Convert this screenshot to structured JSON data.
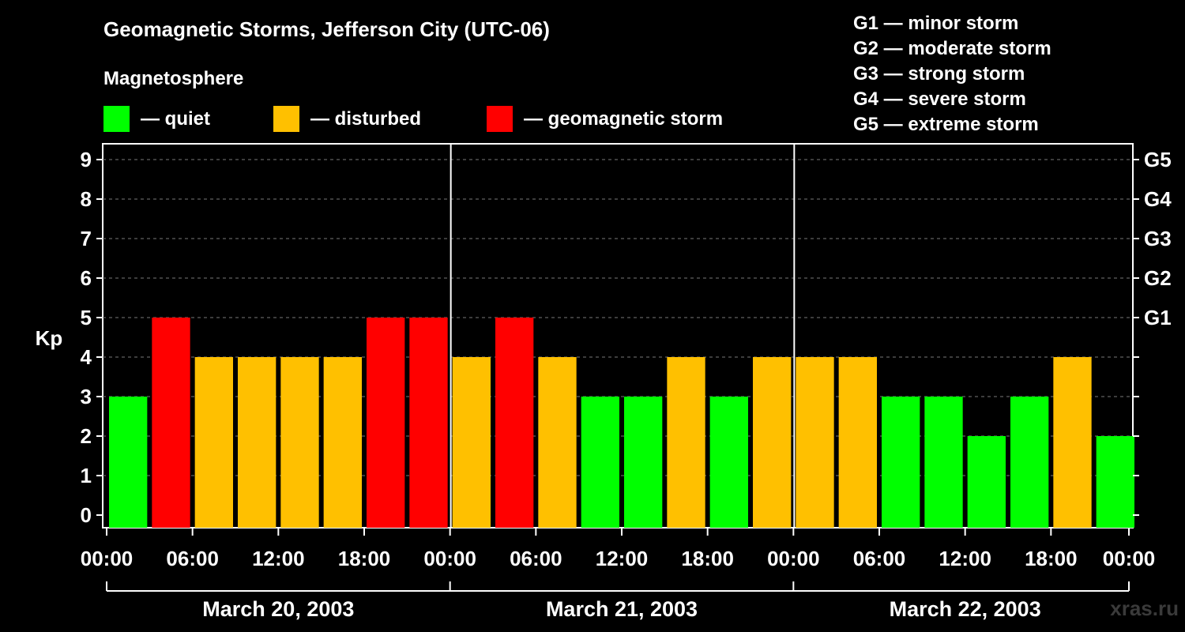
{
  "title": "Geomagnetic Storms, Jefferson City (UTC-06)",
  "subtitle": "Magnetosphere",
  "legend": [
    {
      "label": "— quiet",
      "color": "#00ff00"
    },
    {
      "label": "— disturbed",
      "color": "#ffc000"
    },
    {
      "label": "— geomagnetic storm",
      "color": "#ff0000"
    }
  ],
  "g_scale": [
    "G1 — minor storm",
    "G2 — moderate storm",
    "G3 — strong storm",
    "G4 — severe storm",
    "G5 — extreme storm"
  ],
  "watermark": "xras.ru",
  "chart_data": {
    "type": "bar",
    "ylabel": "Kp",
    "ylim": [
      0,
      9
    ],
    "grid": true,
    "yticks": [
      0,
      1,
      2,
      3,
      4,
      5,
      6,
      7,
      8,
      9
    ],
    "right_ticks": [
      {
        "value": 5,
        "label": "G1"
      },
      {
        "value": 6,
        "label": "G2"
      },
      {
        "value": 7,
        "label": "G3"
      },
      {
        "value": 8,
        "label": "G4"
      },
      {
        "value": 9,
        "label": "G5"
      }
    ],
    "xtick_labels": [
      "00:00",
      "06:00",
      "12:00",
      "18:00",
      "00:00",
      "06:00",
      "12:00",
      "18:00",
      "00:00",
      "06:00",
      "12:00",
      "18:00",
      "00:00"
    ],
    "days": [
      "March 20, 2003",
      "March 21, 2003",
      "March 22, 2003"
    ],
    "values": [
      3,
      5,
      4,
      4,
      4,
      4,
      5,
      5,
      4,
      5,
      4,
      3,
      3,
      4,
      3,
      4,
      4,
      4,
      3,
      3,
      2,
      3,
      4,
      2
    ],
    "colors": {
      "quiet": "#00ff00",
      "disturbed": "#ffc000",
      "storm": "#ff0000"
    }
  }
}
